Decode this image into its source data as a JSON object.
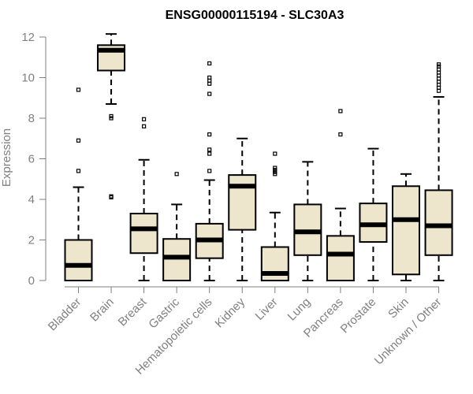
{
  "chart_data": {
    "type": "boxplot",
    "title": "ENSG00000115194 - SLC30A3",
    "xlabel": "",
    "ylabel": "Expression",
    "ylim": [
      0,
      12
    ],
    "yticks": [
      0,
      2,
      4,
      6,
      8,
      10,
      12
    ],
    "categories": [
      "Bladder",
      "Brain",
      "Breast",
      "Gastric",
      "Hematopoietic cells",
      "Kidney",
      "Liver",
      "Lung",
      "Pancreas",
      "Prostate",
      "Skin",
      "Unknown / Other"
    ],
    "boxes": [
      {
        "name": "Bladder",
        "min": 0,
        "q1": 0,
        "median": 0.75,
        "q3": 2.0,
        "max": 4.6,
        "outliers": [
          5.4,
          6.9,
          9.4
        ]
      },
      {
        "name": "Brain",
        "min": 8.7,
        "q1": 10.35,
        "median": 11.35,
        "q3": 11.6,
        "max": 12.15,
        "outliers": [
          8.0,
          8.1,
          4.1,
          4.15
        ]
      },
      {
        "name": "Breast",
        "min": 0,
        "q1": 1.35,
        "median": 2.55,
        "q3": 3.3,
        "max": 5.95,
        "outliers": [
          7.6,
          7.95
        ]
      },
      {
        "name": "Gastric",
        "min": 0,
        "q1": 0,
        "median": 1.15,
        "q3": 2.05,
        "max": 3.75,
        "outliers": [
          5.25
        ]
      },
      {
        "name": "Hematopoietic cells",
        "min": 0,
        "q1": 1.1,
        "median": 2.0,
        "q3": 2.8,
        "max": 4.95,
        "outliers": [
          5.4,
          6.25,
          6.45,
          7.2,
          9.2,
          9.7,
          9.85,
          10.0,
          10.7
        ]
      },
      {
        "name": "Kidney",
        "min": 0,
        "q1": 2.5,
        "median": 4.65,
        "q3": 5.2,
        "max": 7.0,
        "outliers": []
      },
      {
        "name": "Liver",
        "min": 0,
        "q1": 0,
        "median": 0.35,
        "q3": 1.65,
        "max": 3.35,
        "outliers": [
          5.25,
          5.35,
          5.45,
          5.55,
          6.25
        ]
      },
      {
        "name": "Lung",
        "min": 0,
        "q1": 1.25,
        "median": 2.4,
        "q3": 3.75,
        "max": 5.85,
        "outliers": []
      },
      {
        "name": "Pancreas",
        "min": 0,
        "q1": 0,
        "median": 1.3,
        "q3": 2.2,
        "max": 3.55,
        "outliers": [
          7.2,
          8.35
        ]
      },
      {
        "name": "Prostate",
        "min": 0,
        "q1": 1.9,
        "median": 2.75,
        "q3": 3.8,
        "max": 6.5,
        "outliers": []
      },
      {
        "name": "Skin",
        "min": 0,
        "q1": 0.3,
        "median": 3.0,
        "q3": 4.65,
        "max": 5.25,
        "outliers": []
      },
      {
        "name": "Unknown / Other",
        "min": 0,
        "q1": 1.25,
        "median": 2.7,
        "q3": 4.45,
        "max": 9.05,
        "outliers": [
          9.35,
          9.5,
          9.65,
          9.8,
          9.95,
          10.1,
          10.25,
          10.4,
          10.55,
          10.65
        ]
      }
    ]
  },
  "colors": {
    "box_fill": "#ede5cc",
    "stroke": "#000000",
    "axis": "#808080",
    "label": "#808080"
  }
}
